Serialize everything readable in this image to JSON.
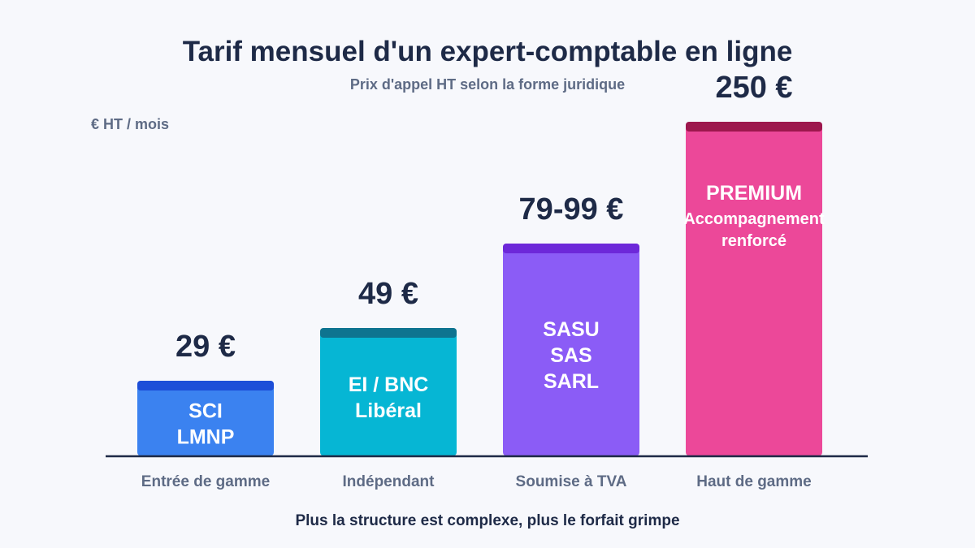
{
  "chart_data": {
    "type": "bar",
    "title": "Tarif mensuel d'un expert-comptable en ligne",
    "subtitle": "Prix d'appel HT selon la forme juridique",
    "unit_label": "€ HT / mois",
    "xlabel": "",
    "ylabel": "",
    "grid": false,
    "legend": "none",
    "footer": "Plus la structure est complexe, plus le forfait grimpe",
    "categories": [
      "Entrée de gamme",
      "Indépendant",
      "Soumise à TVA",
      "Haut de gamme"
    ],
    "values": [
      29,
      49,
      89,
      250
    ],
    "value_labels": [
      "29 €",
      "49 €",
      "79-99 €",
      "250 €"
    ],
    "bar_texts": [
      [
        "SCI",
        "LMNP"
      ],
      [
        "EI / BNC",
        "Libéral"
      ],
      [
        "SASU",
        "SAS",
        "SARL"
      ],
      [
        "PREMIUM",
        "Accompagnement",
        "renforcé"
      ]
    ],
    "colors": [
      "#3b82f0",
      "#06b6d4",
      "#8b5cf6",
      "#ec4899"
    ],
    "cap_colors": [
      "#1d4ed8",
      "#0e7490",
      "#6d28d9",
      "#9d174d"
    ]
  }
}
